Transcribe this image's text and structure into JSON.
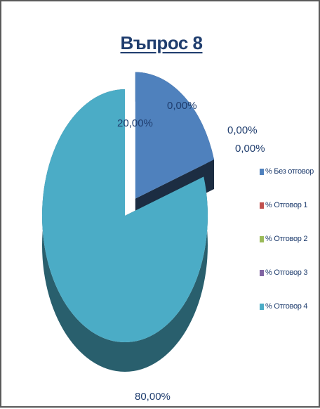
{
  "chart_data": {
    "type": "pie",
    "title": "Въпрос 8",
    "categories": [
      "% Без отговор",
      "% Отговор 1",
      "% Отговор 2",
      "% Отговор 3",
      "% Отговор 4"
    ],
    "values": [
      20.0,
      0.0,
      0.0,
      0.0,
      80.0
    ],
    "data_labels": [
      "20,00%",
      "0,00%",
      "0,00%",
      "0,00%",
      "80,00%"
    ],
    "colors": [
      "#4f81bd",
      "#c0504d",
      "#9bbb59",
      "#8064a2",
      "#4bacc6"
    ],
    "style": "3d-exploded",
    "legend_position": "right"
  }
}
